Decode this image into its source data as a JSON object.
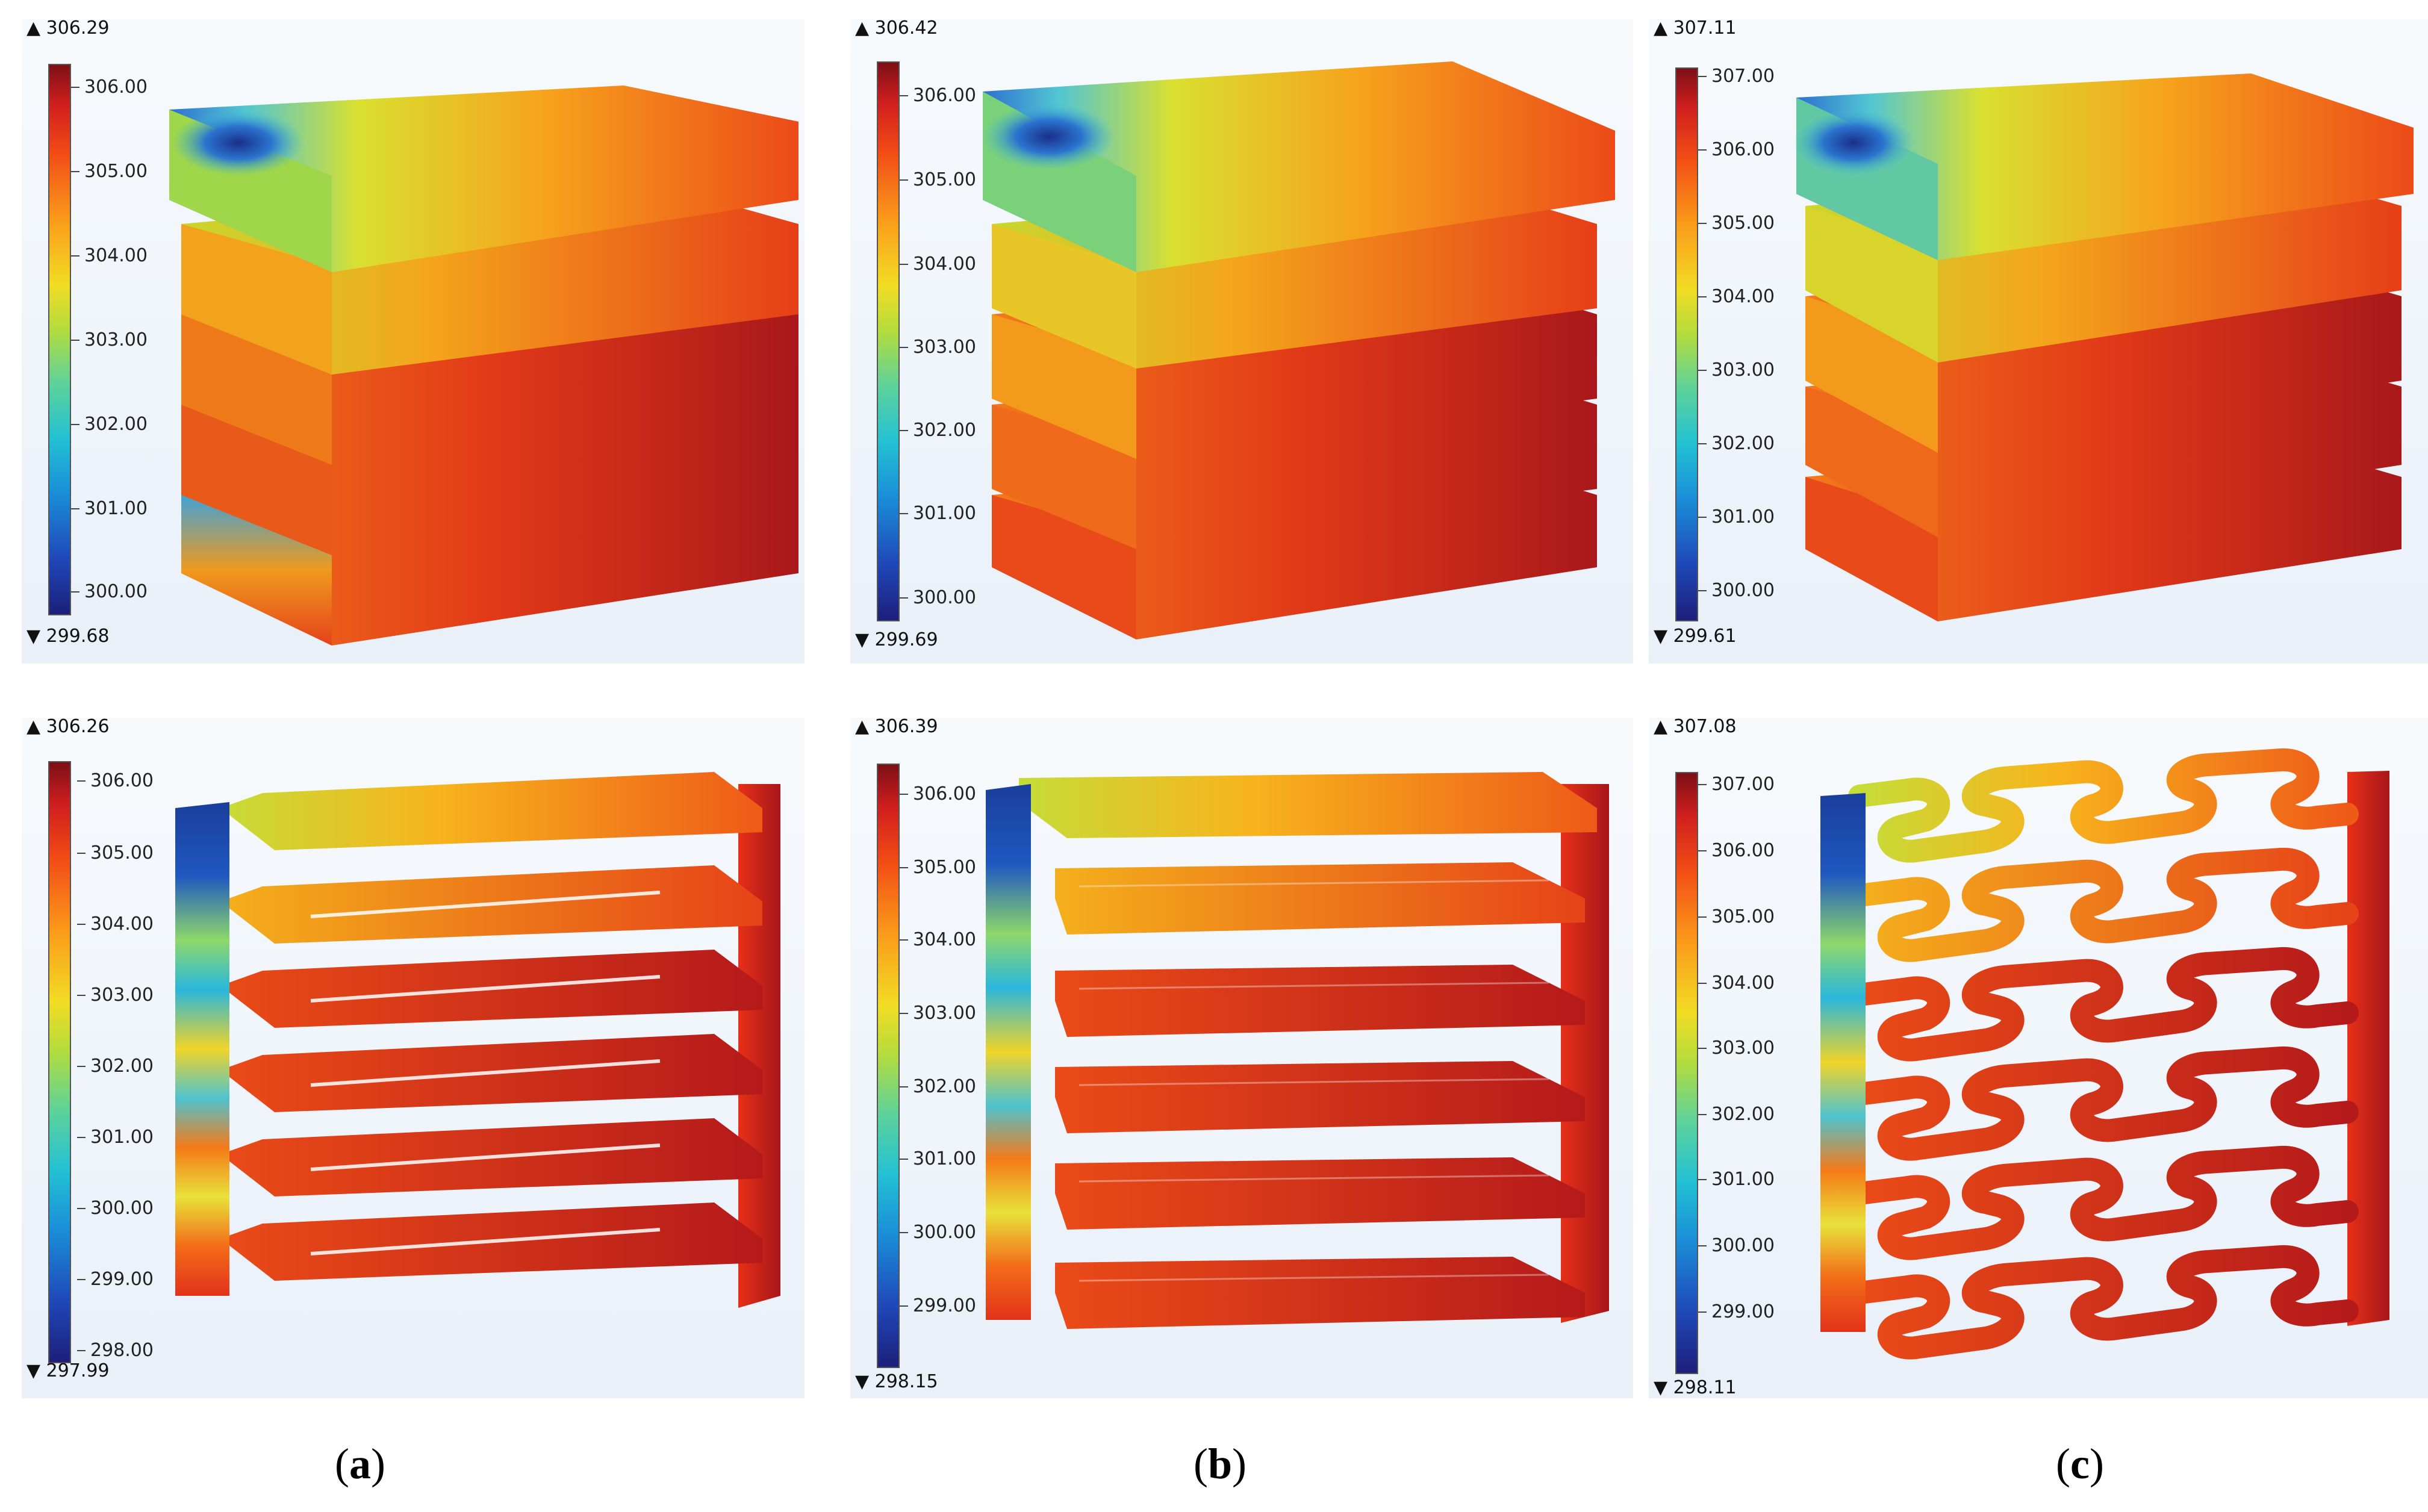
{
  "panels": [
    {
      "id": "a-top",
      "max": "▲ 306.29",
      "min": "▼ 299.68",
      "ticks": [
        "306.00",
        "305.00",
        "304.00",
        "303.00",
        "302.00",
        "301.00",
        "300.00"
      ]
    },
    {
      "id": "b-top",
      "max": "▲ 306.42",
      "min": "▼ 299.69",
      "ticks": [
        "306.00",
        "305.00",
        "304.00",
        "303.00",
        "302.00",
        "301.00",
        "300.00"
      ]
    },
    {
      "id": "c-top",
      "max": "▲ 307.11",
      "min": "▼ 299.61",
      "ticks": [
        "307.00",
        "306.00",
        "305.00",
        "304.00",
        "303.00",
        "302.00",
        "301.00",
        "300.00"
      ]
    },
    {
      "id": "a-bottom",
      "max": "▲ 306.26",
      "min": "▼ 297.99",
      "ticks": [
        "306.00",
        "305.00",
        "304.00",
        "303.00",
        "302.00",
        "301.00",
        "300.00",
        "299.00",
        "298.00"
      ]
    },
    {
      "id": "b-bottom",
      "max": "▲ 306.39",
      "min": "▼ 298.15",
      "ticks": [
        "306.00",
        "305.00",
        "304.00",
        "303.00",
        "302.00",
        "301.00",
        "300.00",
        "299.00"
      ]
    },
    {
      "id": "c-bottom",
      "max": "▲ 307.08",
      "min": "▼ 298.11",
      "ticks": [
        "307.00",
        "306.00",
        "305.00",
        "304.00",
        "303.00",
        "302.00",
        "301.00",
        "300.00",
        "299.00"
      ]
    }
  ],
  "captions": {
    "a": {
      "open": "(",
      "letter": "a",
      "close": ")"
    },
    "b": {
      "open": "(",
      "letter": "b",
      "close": ")"
    },
    "c": {
      "open": "(",
      "letter": "c",
      "close": ")"
    }
  },
  "colors": {
    "hot": "#d41f1c",
    "warm": "#f25a17",
    "mid": "#f2d428",
    "cool": "#2aaed8",
    "cold": "#1b3f9e"
  }
}
